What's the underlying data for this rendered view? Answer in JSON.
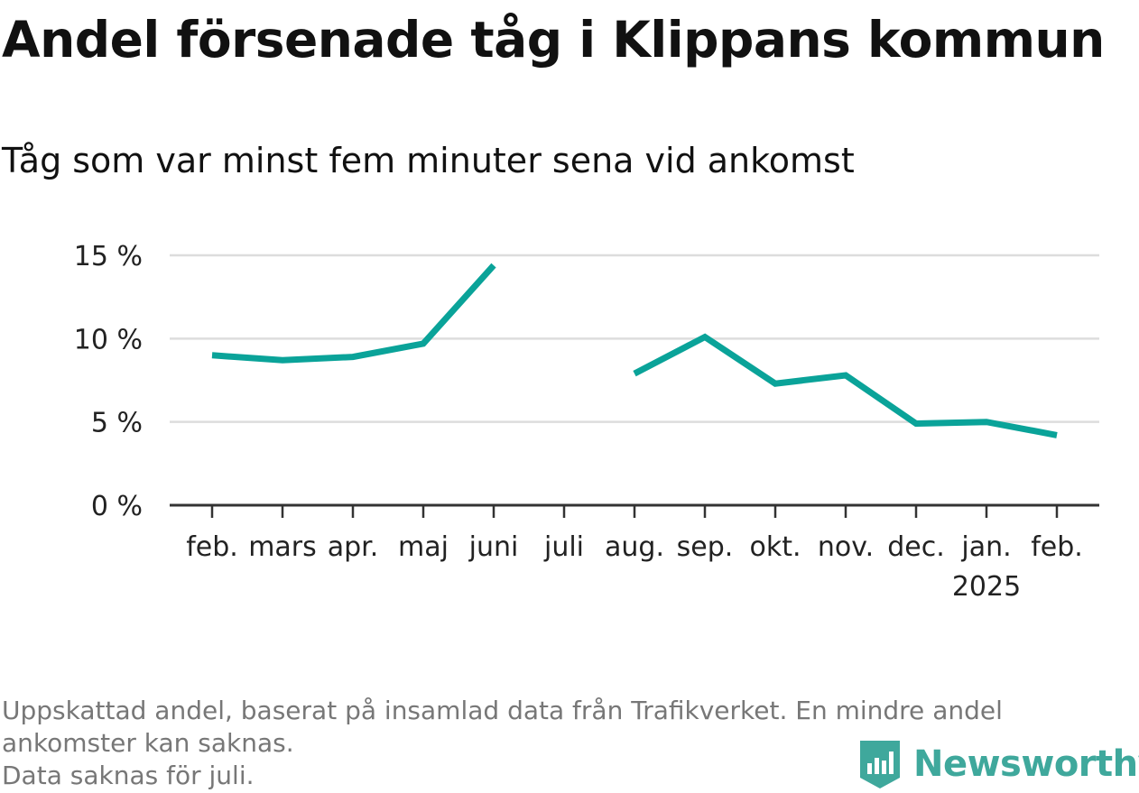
{
  "header": {
    "title": "Andel försenade tåg i Klippans kommun",
    "subtitle": "Tåg som var minst fem minuter sena vid ankomst"
  },
  "chart_data": {
    "type": "line",
    "title": "Andel försenade tåg i Klippans kommun",
    "subtitle": "Tåg som var minst fem minuter sena vid ankomst",
    "categories": [
      "feb.",
      "mars",
      "apr.",
      "maj",
      "juni",
      "juli",
      "aug.",
      "sep.",
      "okt.",
      "nov.",
      "dec.",
      "jan.",
      "feb."
    ],
    "year_label": {
      "index": 11,
      "text": "2025"
    },
    "series": [
      {
        "values": [
          9.0,
          8.7,
          8.9,
          9.7,
          14.4,
          null,
          7.9,
          10.1,
          7.3,
          7.8,
          4.9,
          5.0,
          4.2
        ]
      }
    ],
    "yticks": [
      0,
      5,
      10,
      15
    ],
    "ytick_labels": [
      "0 %",
      "5 %",
      "10 %",
      "15 %"
    ],
    "ylim": [
      0,
      15
    ],
    "grid": true,
    "line_color": "#0aa399",
    "xlabel": "",
    "ylabel": ""
  },
  "footnote": {
    "lines": [
      "Uppskattad andel, baserat på insamlad data från Trafikverket. En mindre andel",
      "ankomster kan saknas.",
      "Data saknas för juli."
    ]
  },
  "brand": {
    "name": "Newsworthy",
    "color": "#3fa89c"
  }
}
